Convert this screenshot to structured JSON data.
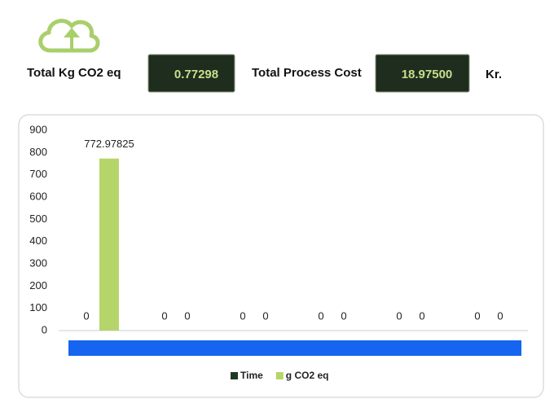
{
  "header": {
    "co2_label": "Total Kg CO2 eq",
    "co2_value": "0.77298",
    "cost_label": "Total Process Cost",
    "cost_value": "18.97500",
    "cost_unit": "Kr."
  },
  "chart_data": {
    "type": "bar",
    "categories": [
      null,
      null,
      null,
      null,
      null,
      null
    ],
    "series": [
      {
        "name": "Time",
        "color": "#1e3a22",
        "values": [
          0,
          0,
          0,
          0,
          0,
          0
        ]
      },
      {
        "name": "g CO2 eq",
        "color": "#b5d56a",
        "values": [
          772.97825,
          0,
          0,
          0,
          0,
          0
        ]
      }
    ],
    "ylim": [
      0,
      900
    ],
    "yticks": [
      0,
      100,
      200,
      300,
      400,
      500,
      600,
      700,
      800,
      900
    ],
    "data_labels": true,
    "legend": "bottom"
  }
}
